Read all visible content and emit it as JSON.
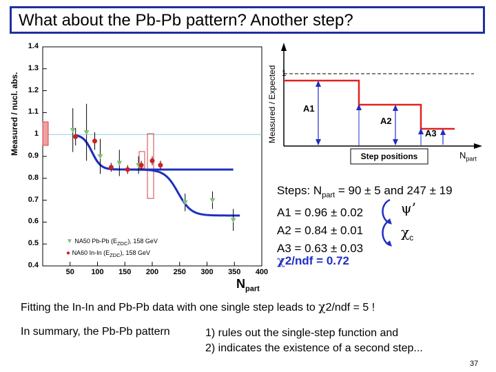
{
  "slide": {
    "title": "What about the Pb-Pb pattern?  Another step?",
    "page_number": "37"
  },
  "left_plot": {
    "ylabel": "Measured / nucl. abs.",
    "xlabel_main": "N",
    "xlabel_sub": "part",
    "yticks": [
      "1.4",
      "1.3",
      "1.2",
      "1.1",
      "1",
      "0.9",
      "0.8",
      "0.7",
      "0.6",
      "0.5",
      "0.4"
    ],
    "xticks": [
      "50",
      "100",
      "150",
      "200",
      "250",
      "300",
      "350",
      "400"
    ],
    "legend": [
      {
        "pre": "NA50 Pb-Pb (E",
        "sub": "ZDC",
        "post": "), 158 GeV",
        "color": "#7fc07f"
      },
      {
        "pre": "NA60 In-In (E",
        "sub": "ZDC",
        "post": "), 158 GeV",
        "color": "#d02020"
      }
    ]
  },
  "chart_data": {
    "type": "scatter",
    "xlabel": "Npart",
    "ylabel": "Measured / nucl. abs.",
    "xlim": [
      0,
      400
    ],
    "ylim": [
      0.4,
      1.4
    ],
    "series": [
      {
        "name": "NA50 Pb-Pb (EZDC), 158 GeV",
        "color": "#7fc07f",
        "marker": "triangle-down",
        "points": [
          [
            55,
            1.02
          ],
          [
            80,
            1.01
          ],
          [
            105,
            0.9
          ],
          [
            140,
            0.87
          ],
          [
            175,
            0.86
          ],
          [
            260,
            0.69
          ],
          [
            310,
            0.7
          ],
          [
            348,
            0.61
          ]
        ],
        "errors": [
          0.1,
          0.13,
          0.08,
          0.06,
          0.04,
          0.04,
          0.04,
          0.05
        ]
      },
      {
        "name": "NA60 In-In (EZDC), 158 GeV",
        "color": "#d02020",
        "marker": "circle",
        "points": [
          [
            60,
            0.99
          ],
          [
            95,
            0.97
          ],
          [
            125,
            0.85
          ],
          [
            155,
            0.84
          ],
          [
            180,
            0.86
          ],
          [
            200,
            0.88
          ],
          [
            215,
            0.86
          ]
        ],
        "errors": [
          0.04,
          0.04,
          0.02,
          0.02,
          0.02,
          0.02,
          0.02
        ]
      }
    ],
    "reference_line_y": 1.0,
    "curve_color": "#1f2fc0"
  },
  "step_plot": {
    "ylabel": "Measured / Expected",
    "one_label": "1",
    "labels": [
      "A1",
      "A2",
      "A3"
    ],
    "step_positions_label": "Step positions",
    "npart_main": "N",
    "npart_sub": "part"
  },
  "text": {
    "steps_pre": "Steps: N",
    "steps_sub": "part",
    "steps_post": " = 90 ± 5 and 247 ± 19",
    "a1": "A1 = 0.96 ± 0.02",
    "a2": "A2 = 0.84 ± 0.01",
    "a3": "A3 = 0.63 ± 0.03",
    "psi": "ψ’",
    "chi_c": "χ",
    "chi_c_sub": "c",
    "chi2_chi": "χ",
    "chi2_rest": "2/ndf = 0.72",
    "fit_pre": "Fitting the In-In and Pb-Pb data with one single step leads to ",
    "fit_chi": "χ",
    "fit_post": "2/ndf = 5 !",
    "summary": "In summary, the Pb-Pb pattern",
    "rule1": "1) rules out the single-step function and",
    "rule2": "2) indicates the existence of a second step..."
  }
}
